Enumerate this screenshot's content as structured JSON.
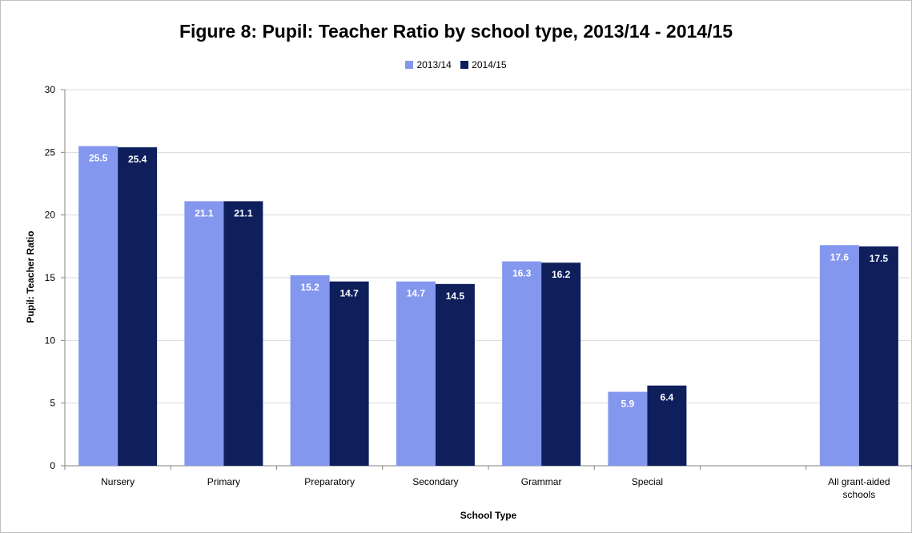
{
  "chart_data": {
    "type": "bar",
    "title": "Figure 8: Pupil: Teacher Ratio by school type, 2013/14 - 2014/15",
    "xlabel": "School Type",
    "ylabel": "Pupil: Teacher Ratio",
    "ylim": [
      0,
      30
    ],
    "yticks": [
      0,
      5,
      10,
      15,
      20,
      25,
      30
    ],
    "grid": true,
    "legend_position": "top-center",
    "categories": [
      "Nursery",
      "Primary",
      "Preparatory",
      "Secondary",
      "Grammar",
      "Special",
      "",
      "All grant-aided schools"
    ],
    "category_label_lines": [
      [
        "Nursery"
      ],
      [
        "Primary"
      ],
      [
        "Preparatory"
      ],
      [
        "Secondary"
      ],
      [
        "Grammar"
      ],
      [
        "Special"
      ],
      [],
      [
        "All grant-aided",
        "schools"
      ]
    ],
    "series": [
      {
        "name": "2013/14",
        "color": "#8497ee",
        "values": [
          25.5,
          21.1,
          15.2,
          14.7,
          16.3,
          5.9,
          null,
          17.6
        ]
      },
      {
        "name": "2014/15",
        "color": "#0f1f5c",
        "values": [
          25.4,
          21.1,
          14.7,
          14.5,
          16.2,
          6.4,
          null,
          17.5
        ]
      }
    ]
  }
}
